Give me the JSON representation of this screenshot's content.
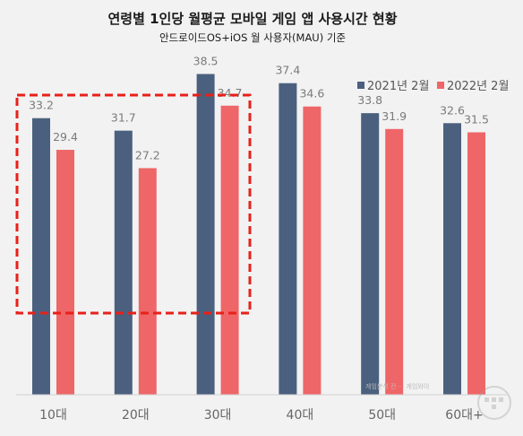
{
  "chart_data": {
    "type": "bar",
    "title": "연령별 1인당 월평균 모바일 게임 앱 사용시간 현황",
    "subtitle": "안드로이드OS+iOS 월 사용자(MAU) 기준",
    "categories": [
      "10대",
      "20대",
      "30대",
      "40대",
      "50대",
      "60대+"
    ],
    "series": [
      {
        "name": "2021년 2월",
        "values": [
          33.2,
          31.7,
          38.5,
          37.4,
          33.8,
          32.6
        ],
        "color": "#4a607e"
      },
      {
        "name": "2022년 2월",
        "values": [
          29.4,
          27.2,
          34.7,
          34.6,
          31.9,
          31.5
        ],
        "color": "#ef6668"
      }
    ],
    "ylim": [
      0,
      42
    ],
    "grid": false,
    "legend": "top-right",
    "highlight": {
      "categories": [
        "10대",
        "20대",
        "30대"
      ],
      "color": "#e8201a",
      "style": "dashed"
    },
    "watermark": "게임분석 전 ··· 게임와이"
  }
}
